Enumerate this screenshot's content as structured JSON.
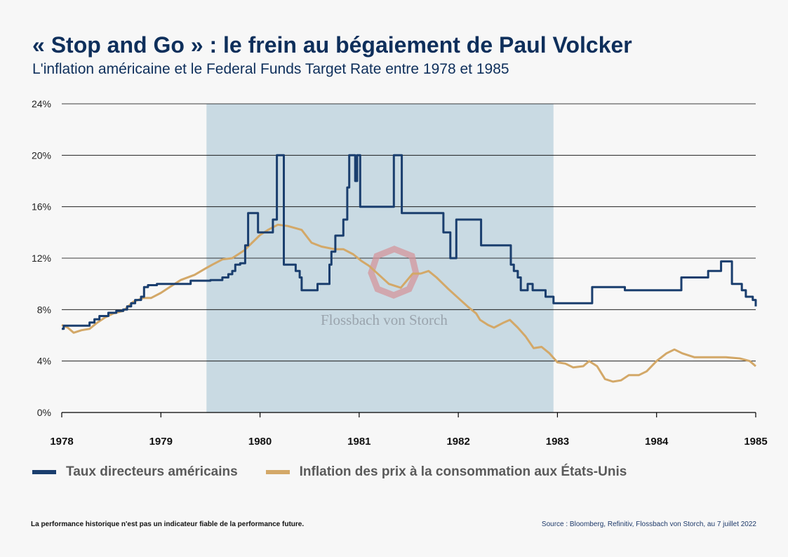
{
  "header": {
    "title": "« Stop and Go » : le frein au bégaiement de Paul Volcker",
    "subtitle": "L'inflation américaine et le Federal Funds Target Rate entre 1978 et 1985"
  },
  "legend": {
    "rate_label": "Taux directeurs américains",
    "cpi_label": "Inflation des prix à la consommation aux États-Unis"
  },
  "footer": {
    "disclaimer": "La performance historique n'est pas un indicateur fiable de la performance future.",
    "source": "Source : Bloomberg, Refinitiv, Flossbach von Storch, au 7 juillet 2022"
  },
  "watermark": {
    "text": "Flossbach von Storch"
  },
  "colors": {
    "rate": "#1a3e6e",
    "cpi": "#d3a868",
    "shade": "#c9dae3",
    "title": "#0e2f5b"
  },
  "chart_data": {
    "type": "line",
    "title": "« Stop and Go » : le frein au bégaiement de Paul Volcker",
    "subtitle": "L'inflation américaine et le Federal Funds Target Rate entre 1978 et 1985",
    "xlabel": "",
    "ylabel": "",
    "xlim": [
      1978,
      1985
    ],
    "ylim": [
      0,
      24
    ],
    "x_ticks": [
      "1978",
      "1979",
      "1980",
      "1981",
      "1982",
      "1983",
      "1984",
      "1985"
    ],
    "y_ticks": [
      "0%",
      "4%",
      "8%",
      "12%",
      "16%",
      "20%",
      "24%"
    ],
    "grid": true,
    "legend_position": "bottom",
    "shaded_region": [
      1979.46,
      1982.96
    ],
    "series": [
      {
        "name": "Taux directeurs américains",
        "step": true,
        "points": [
          [
            1978.0,
            6.5
          ],
          [
            1978.02,
            6.75
          ],
          [
            1978.28,
            7.0
          ],
          [
            1978.33,
            7.25
          ],
          [
            1978.38,
            7.5
          ],
          [
            1978.47,
            7.75
          ],
          [
            1978.55,
            7.9
          ],
          [
            1978.62,
            8.0
          ],
          [
            1978.66,
            8.25
          ],
          [
            1978.7,
            8.5
          ],
          [
            1978.74,
            8.75
          ],
          [
            1978.8,
            9.0
          ],
          [
            1978.83,
            9.75
          ],
          [
            1978.87,
            9.9
          ],
          [
            1978.96,
            10.0
          ],
          [
            1979.3,
            10.25
          ],
          [
            1979.5,
            10.3
          ],
          [
            1979.62,
            10.5
          ],
          [
            1979.68,
            10.75
          ],
          [
            1979.72,
            11.0
          ],
          [
            1979.75,
            11.5
          ],
          [
            1979.8,
            11.6
          ],
          [
            1979.85,
            13.0
          ],
          [
            1979.88,
            15.5
          ],
          [
            1979.98,
            14.0
          ],
          [
            1980.13,
            15.0
          ],
          [
            1980.17,
            20.0
          ],
          [
            1980.24,
            11.5
          ],
          [
            1980.36,
            11.0
          ],
          [
            1980.4,
            10.5
          ],
          [
            1980.42,
            9.5
          ],
          [
            1980.58,
            10.0
          ],
          [
            1980.7,
            11.5
          ],
          [
            1980.72,
            12.5
          ],
          [
            1980.76,
            13.75
          ],
          [
            1980.84,
            15.0
          ],
          [
            1980.88,
            17.5
          ],
          [
            1980.9,
            20.0
          ],
          [
            1980.96,
            18.0
          ],
          [
            1980.98,
            20.0
          ],
          [
            1981.01,
            16.0
          ],
          [
            1981.35,
            20.0
          ],
          [
            1981.43,
            15.5
          ],
          [
            1981.85,
            14.0
          ],
          [
            1981.92,
            12.0
          ],
          [
            1981.98,
            15.0
          ],
          [
            1982.23,
            13.0
          ],
          [
            1982.53,
            11.5
          ],
          [
            1982.56,
            11.0
          ],
          [
            1982.6,
            10.5
          ],
          [
            1982.63,
            9.5
          ],
          [
            1982.7,
            10.0
          ],
          [
            1982.75,
            9.5
          ],
          [
            1982.88,
            9.0
          ],
          [
            1982.96,
            8.5
          ],
          [
            1983.35,
            9.75
          ],
          [
            1983.68,
            9.5
          ],
          [
            1984.25,
            10.5
          ],
          [
            1984.52,
            11.0
          ],
          [
            1984.65,
            11.75
          ],
          [
            1984.76,
            10.0
          ],
          [
            1984.86,
            9.5
          ],
          [
            1984.9,
            9.0
          ],
          [
            1984.97,
            8.75
          ],
          [
            1985.0,
            8.25
          ]
        ]
      },
      {
        "name": "Inflation des prix à la consommation aux États-Unis",
        "step": false,
        "points": [
          [
            1978.0,
            6.8
          ],
          [
            1978.06,
            6.6
          ],
          [
            1978.12,
            6.2
          ],
          [
            1978.2,
            6.4
          ],
          [
            1978.28,
            6.5
          ],
          [
            1978.36,
            7.0
          ],
          [
            1978.44,
            7.4
          ],
          [
            1978.52,
            7.7
          ],
          [
            1978.62,
            7.9
          ],
          [
            1978.72,
            8.6
          ],
          [
            1978.82,
            8.9
          ],
          [
            1978.9,
            8.9
          ],
          [
            1979.0,
            9.3
          ],
          [
            1979.1,
            9.8
          ],
          [
            1979.2,
            10.3
          ],
          [
            1979.34,
            10.7
          ],
          [
            1979.45,
            11.2
          ],
          [
            1979.52,
            11.5
          ],
          [
            1979.62,
            11.9
          ],
          [
            1979.72,
            12.0
          ],
          [
            1979.84,
            12.6
          ],
          [
            1979.92,
            13.2
          ],
          [
            1980.0,
            13.8
          ],
          [
            1980.08,
            14.2
          ],
          [
            1980.18,
            14.6
          ],
          [
            1980.28,
            14.5
          ],
          [
            1980.42,
            14.2
          ],
          [
            1980.52,
            13.2
          ],
          [
            1980.62,
            12.9
          ],
          [
            1980.75,
            12.7
          ],
          [
            1980.84,
            12.7
          ],
          [
            1980.94,
            12.3
          ],
          [
            1981.02,
            11.8
          ],
          [
            1981.1,
            11.4
          ],
          [
            1981.2,
            10.7
          ],
          [
            1981.3,
            10.0
          ],
          [
            1981.42,
            9.7
          ],
          [
            1981.54,
            10.8
          ],
          [
            1981.62,
            10.8
          ],
          [
            1981.7,
            11.0
          ],
          [
            1981.78,
            10.5
          ],
          [
            1981.9,
            9.6
          ],
          [
            1982.0,
            8.9
          ],
          [
            1982.1,
            8.2
          ],
          [
            1982.18,
            7.7
          ],
          [
            1982.22,
            7.2
          ],
          [
            1982.3,
            6.8
          ],
          [
            1982.36,
            6.6
          ],
          [
            1982.46,
            7.0
          ],
          [
            1982.52,
            7.2
          ],
          [
            1982.6,
            6.6
          ],
          [
            1982.68,
            5.9
          ],
          [
            1982.76,
            5.0
          ],
          [
            1982.84,
            5.1
          ],
          [
            1982.92,
            4.6
          ],
          [
            1983.0,
            3.9
          ],
          [
            1983.08,
            3.8
          ],
          [
            1983.16,
            3.5
          ],
          [
            1983.26,
            3.6
          ],
          [
            1983.32,
            4.0
          ],
          [
            1983.4,
            3.6
          ],
          [
            1983.48,
            2.6
          ],
          [
            1983.56,
            2.4
          ],
          [
            1983.64,
            2.5
          ],
          [
            1983.72,
            2.9
          ],
          [
            1983.82,
            2.9
          ],
          [
            1983.9,
            3.2
          ],
          [
            1984.0,
            4.0
          ],
          [
            1984.1,
            4.6
          ],
          [
            1984.18,
            4.9
          ],
          [
            1984.26,
            4.6
          ],
          [
            1984.38,
            4.3
          ],
          [
            1984.5,
            4.3
          ],
          [
            1984.7,
            4.3
          ],
          [
            1984.84,
            4.2
          ],
          [
            1984.94,
            4.0
          ],
          [
            1985.0,
            3.6
          ]
        ]
      }
    ]
  }
}
